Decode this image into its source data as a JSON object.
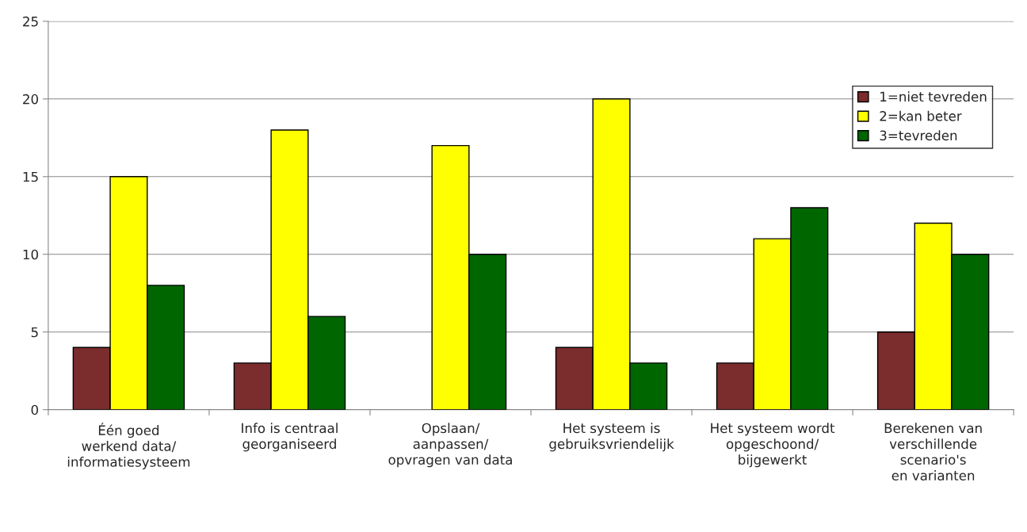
{
  "chart_data": {
    "type": "bar",
    "categories": [
      "Één goed\nwerkend data/\ninformatiesysteem",
      "Info is centraal\ngeorganiseerd",
      "Opslaan/\naanpassen/\nopvragen van data",
      "Het systeem is\ngebruiksvriendelijk",
      "Het systeem wordt\nopgeschoond/\nbijgewerkt",
      "Berekenen van\nverschillende\nscenario's\nen varianten"
    ],
    "series": [
      {
        "name": "1=niet tevreden",
        "color": "#7b2c2c",
        "values": [
          4,
          3,
          null,
          4,
          3,
          5
        ]
      },
      {
        "name": "2=kan beter",
        "color": "#ffff00",
        "values": [
          15,
          18,
          17,
          20,
          11,
          12
        ]
      },
      {
        "name": "3=tevreden",
        "color": "#006600",
        "values": [
          8,
          6,
          10,
          3,
          13,
          10
        ]
      }
    ],
    "ylim": [
      0,
      25
    ],
    "yticks": [
      0,
      5,
      10,
      15,
      20,
      25
    ],
    "grid": "y",
    "legend": "top right"
  }
}
